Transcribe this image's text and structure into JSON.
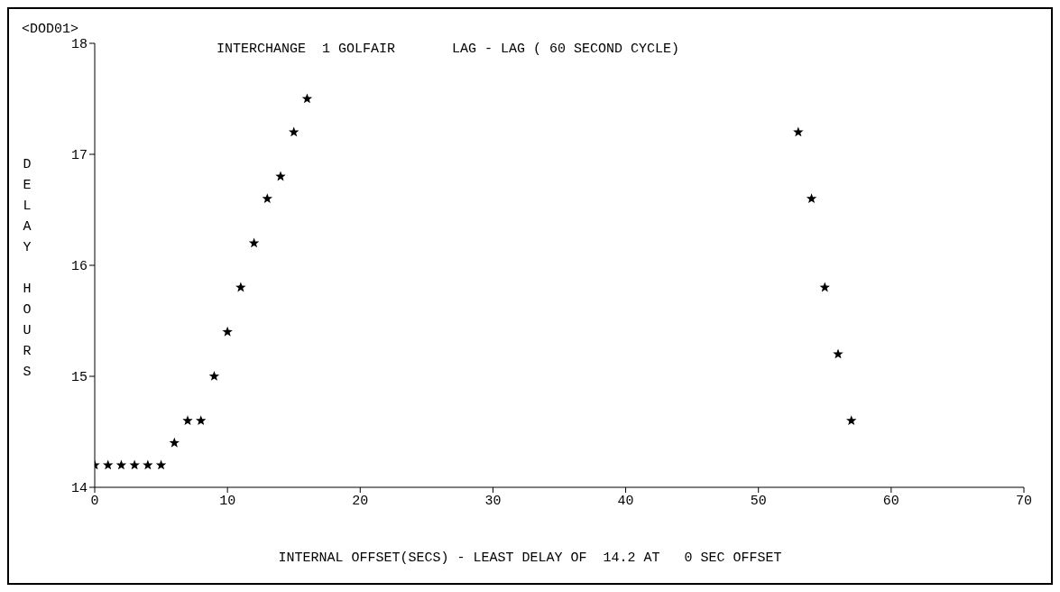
{
  "chart_data": {
    "type": "scatter",
    "title": "INTERCHANGE  1 GOLFAIR       LAG - LAG ( 60 SECOND CYCLE)",
    "xlabel": "INTERNAL OFFSET(SECS) - LEAST DELAY OF  14.2 AT   0 SEC OFFSET",
    "ylabel": "DELAY HOURS",
    "annotations": [
      "<DOD01>"
    ],
    "series": [
      {
        "color": "#000000",
        "x": [
          0,
          1,
          2,
          3,
          4,
          5,
          6,
          7,
          8,
          9,
          10,
          11,
          12,
          13,
          14,
          15,
          16,
          53,
          54,
          55,
          56,
          57
        ],
        "values": [
          14.2,
          14.2,
          14.2,
          14.2,
          14.2,
          14.2,
          14.4,
          14.6,
          14.6,
          15.0,
          15.4,
          15.8,
          16.2,
          16.6,
          16.8,
          17.2,
          17.5,
          17.2,
          16.6,
          15.8,
          15.2,
          14.6
        ]
      }
    ],
    "xlim": [
      0,
      70
    ],
    "xticks": [
      0,
      10,
      20,
      30,
      40,
      50,
      60,
      70
    ],
    "ylim": [
      14,
      18
    ],
    "yticks": [
      14,
      15,
      16,
      17,
      18
    ],
    "grid": false,
    "legend": false,
    "marker": "star"
  }
}
